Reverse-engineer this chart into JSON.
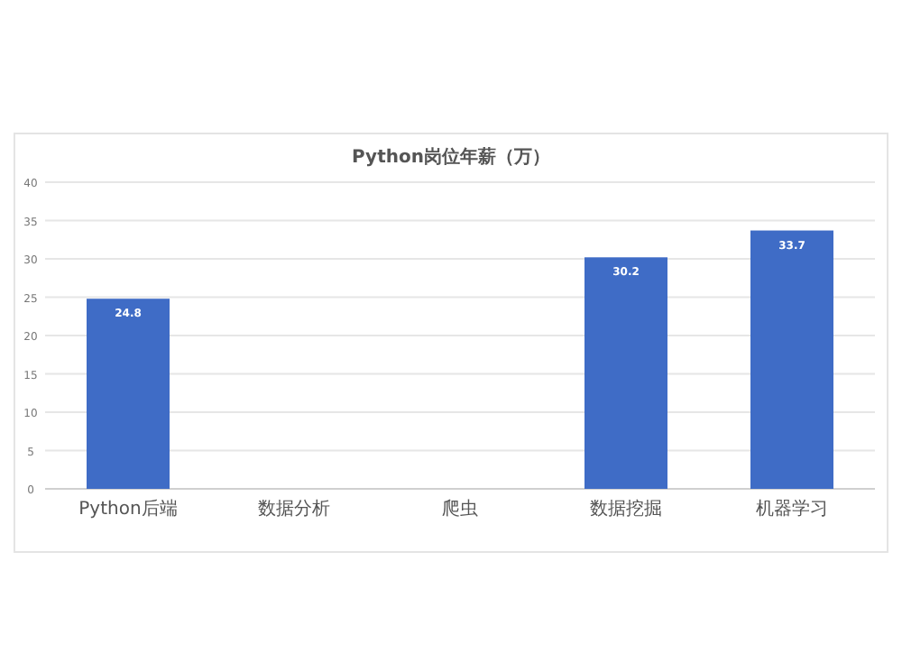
{
  "chart_data": {
    "type": "bar",
    "title": "Python岗位年薪（万）",
    "categories": [
      "Python后端",
      "数据分析",
      "爬虫",
      "数据挖掘",
      "机器学习"
    ],
    "values": [
      24.8,
      null,
      null,
      30.2,
      33.7
    ],
    "value_labels": [
      "24.8",
      null,
      null,
      "30.2",
      "33.7"
    ],
    "color": "#3f6cc6",
    "ylim": [
      0,
      40
    ],
    "yticks": [
      0,
      5,
      10,
      15,
      20,
      25,
      30,
      35,
      40
    ],
    "grid": "y"
  }
}
